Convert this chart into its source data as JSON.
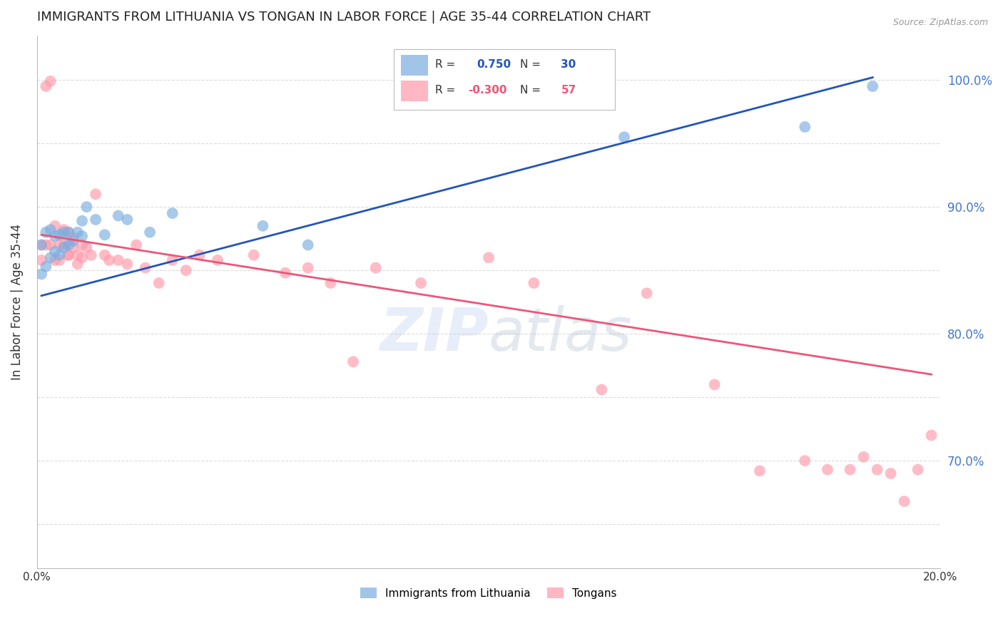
{
  "title": "IMMIGRANTS FROM LITHUANIA VS TONGAN IN LABOR FORCE | AGE 35-44 CORRELATION CHART",
  "source": "Source: ZipAtlas.com",
  "ylabel": "In Labor Force | Age 35-44",
  "xlim": [
    0.0,
    0.2
  ],
  "ylim": [
    0.615,
    1.035
  ],
  "lithuania_R": 0.75,
  "lithuania_N": 30,
  "tongan_R": -0.3,
  "tongan_N": 57,
  "lithuania_color": "#7AADE0",
  "tongan_color": "#FF99AA",
  "lithuania_line_color": "#2255BB",
  "tongan_line_color": "#EE5577",
  "background_color": "#FFFFFF",
  "grid_color": "#CCCCCC",
  "right_axis_color": "#4477CC",
  "watermark_color": "#BBCCEE",
  "watermark_alpha": 0.35,
  "lithuania_x": [
    0.001,
    0.001,
    0.002,
    0.002,
    0.003,
    0.003,
    0.004,
    0.004,
    0.005,
    0.005,
    0.006,
    0.006,
    0.007,
    0.007,
    0.008,
    0.009,
    0.01,
    0.01,
    0.011,
    0.013,
    0.015,
    0.018,
    0.02,
    0.025,
    0.03,
    0.05,
    0.06,
    0.13,
    0.17,
    0.185
  ],
  "lithuania_y": [
    0.847,
    0.87,
    0.853,
    0.88,
    0.86,
    0.882,
    0.865,
    0.877,
    0.862,
    0.878,
    0.868,
    0.88,
    0.87,
    0.88,
    0.873,
    0.88,
    0.877,
    0.889,
    0.9,
    0.89,
    0.878,
    0.893,
    0.89,
    0.88,
    0.895,
    0.885,
    0.87,
    0.955,
    0.963,
    0.995
  ],
  "tongan_x": [
    0.001,
    0.001,
    0.002,
    0.002,
    0.003,
    0.003,
    0.004,
    0.004,
    0.005,
    0.005,
    0.006,
    0.006,
    0.007,
    0.007,
    0.007,
    0.008,
    0.008,
    0.009,
    0.009,
    0.01,
    0.01,
    0.011,
    0.012,
    0.013,
    0.015,
    0.016,
    0.018,
    0.02,
    0.022,
    0.024,
    0.027,
    0.03,
    0.033,
    0.036,
    0.04,
    0.048,
    0.055,
    0.06,
    0.065,
    0.07,
    0.075,
    0.085,
    0.1,
    0.11,
    0.125,
    0.135,
    0.15,
    0.16,
    0.17,
    0.175,
    0.18,
    0.183,
    0.186,
    0.189,
    0.192,
    0.195,
    0.198
  ],
  "tongan_y": [
    0.87,
    0.858,
    0.995,
    0.87,
    0.999,
    0.87,
    0.885,
    0.858,
    0.87,
    0.858,
    0.882,
    0.87,
    0.862,
    0.88,
    0.862,
    0.876,
    0.868,
    0.862,
    0.855,
    0.87,
    0.86,
    0.868,
    0.862,
    0.91,
    0.862,
    0.858,
    0.858,
    0.855,
    0.87,
    0.852,
    0.84,
    0.858,
    0.85,
    0.862,
    0.858,
    0.862,
    0.848,
    0.852,
    0.84,
    0.778,
    0.852,
    0.84,
    0.86,
    0.84,
    0.756,
    0.832,
    0.76,
    0.692,
    0.7,
    0.693,
    0.693,
    0.703,
    0.693,
    0.69,
    0.668,
    0.693,
    0.72
  ],
  "lith_line_x": [
    0.001,
    0.185
  ],
  "lith_line_y": [
    0.83,
    1.002
  ],
  "tong_line_x": [
    0.001,
    0.198
  ],
  "tong_line_y": [
    0.878,
    0.768
  ]
}
